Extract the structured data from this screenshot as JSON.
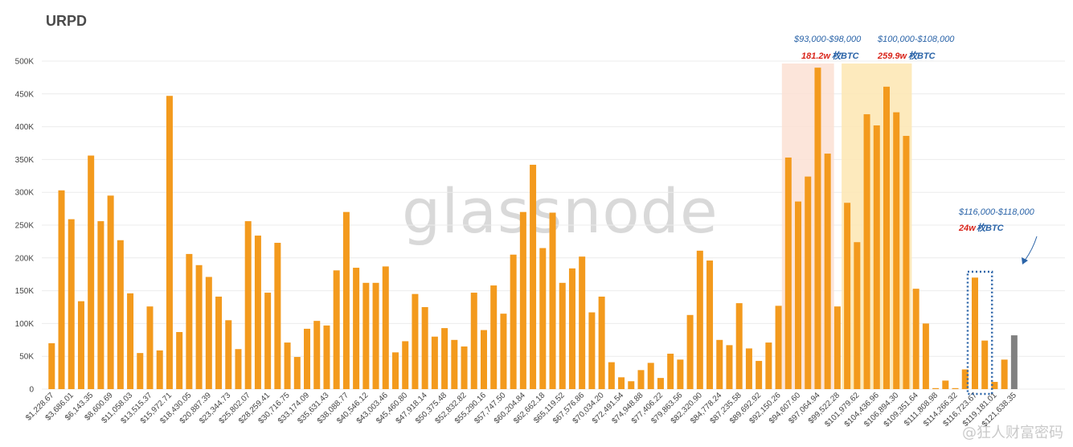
{
  "chart_data": {
    "type": "bar",
    "title": "URPD",
    "ylim": [
      0,
      500000
    ],
    "yticks": [
      0,
      50000,
      100000,
      150000,
      200000,
      250000,
      300000,
      350000,
      400000,
      450000,
      500000
    ],
    "ytick_labels": [
      "0",
      "50K",
      "100K",
      "150K",
      "200K",
      "250K",
      "300K",
      "350K",
      "400K",
      "450K",
      "500K"
    ],
    "grid": true,
    "values": [
      70000,
      303000,
      259000,
      134000,
      356000,
      256000,
      295000,
      227000,
      146000,
      55000,
      126000,
      59000,
      447000,
      87000,
      206000,
      189000,
      171000,
      141000,
      105000,
      61000,
      256000,
      234000,
      147000,
      223000,
      71000,
      49000,
      92000,
      104000,
      97000,
      181000,
      270000,
      185000,
      162000,
      162000,
      187000,
      56000,
      73000,
      145000,
      125000,
      80000,
      93000,
      75000,
      65000,
      147000,
      90000,
      158000,
      115000,
      205000,
      270000,
      342000,
      215000,
      269000,
      162000,
      184000,
      202000,
      117000,
      141000,
      41000,
      18000,
      12000,
      29000,
      40000,
      17000,
      54000,
      45000,
      113000,
      211000,
      196000,
      75000,
      67000,
      131000,
      62000,
      43000,
      71000,
      127000,
      353000,
      286000,
      324000,
      490000,
      359000,
      126000,
      284000,
      224000,
      419000,
      402000,
      461000,
      422000,
      386000,
      153000,
      100000,
      1500,
      13000,
      1500,
      30000,
      170000,
      74000,
      11000,
      45000,
      82000
    ],
    "x_labels": [
      "$1,228.67",
      "$3,686.01",
      "$6,143.35",
      "$8,600.69",
      "$11,058.03",
      "$13,515.37",
      "$15,972.71",
      "$18,430.05",
      "$20,887.39",
      "$23,344.73",
      "$25,802.07",
      "$28,259.41",
      "$30,716.75",
      "$33,174.09",
      "$35,631.43",
      "$38,088.77",
      "$40,546.12",
      "$43,003.46",
      "$45,460.80",
      "$47,918.14",
      "$50,375.48",
      "$52,832.82",
      "$55,290.16",
      "$57,747.50",
      "$60,204.84",
      "$62,662.18",
      "$65,119.52",
      "$67,576.86",
      "$70,034.20",
      "$72,491.54",
      "$74,948.88",
      "$77,406.22",
      "$79,863.56",
      "$82,320.90",
      "$84,778.24",
      "$87,235.58",
      "$89,692.92",
      "$92,150.26",
      "$94,607.60",
      "$97,064.94",
      "$99,522.28",
      "$101,979.62",
      "$104,436.96",
      "$106,894.30",
      "$109,351.64",
      "$111,808.98",
      "$114,266.32",
      "$116,723.67",
      "$119,181.01",
      "$121,638.35"
    ],
    "colors": {
      "bar": "#f39a1d",
      "last_bar": "#808080",
      "grid": "#ececec",
      "highlight_red": "#fbe1d3",
      "highlight_yellow": "#fde8b6",
      "box": "#2b64a8"
    },
    "annotations": [
      {
        "range": "$93,000-$98,000",
        "amount": "181.2w",
        "unit": "枚BTC"
      },
      {
        "range": "$100,000-$108,000",
        "amount": "259.9w",
        "unit": "枚BTC"
      },
      {
        "range": "$116,000-$118,000",
        "amount": "24w",
        "unit": "枚BTC"
      }
    ]
  },
  "watermark": "glassnode",
  "corner_mark": "@狂人财富密码"
}
